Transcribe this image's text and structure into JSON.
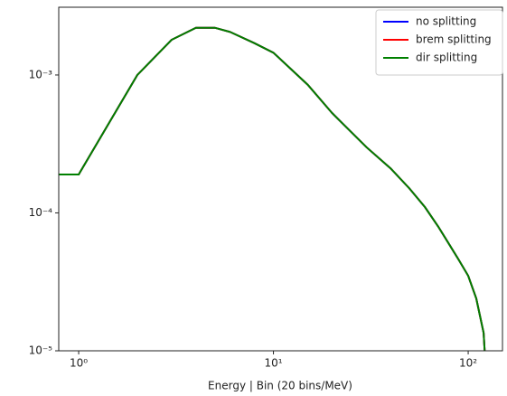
{
  "chart_data": {
    "type": "line",
    "xlabel": "Energy |  Bin (20 bins/MeV)",
    "xscale": "log",
    "yscale": "log",
    "xlim": [
      0.79,
      150
    ],
    "ylim": [
      1e-05,
      0.0031
    ],
    "xticks": [
      {
        "value": 1,
        "label": "10⁰"
      },
      {
        "value": 10,
        "label": "10¹"
      },
      {
        "value": 100,
        "label": "10²"
      }
    ],
    "yticks": [
      {
        "value": 1e-05,
        "label": "10⁻⁵"
      },
      {
        "value": 0.0001,
        "label": "10⁻⁴"
      },
      {
        "value": 0.001,
        "label": "10⁻³"
      }
    ],
    "legend": "upper right",
    "x": [
      0.79,
      1,
      2,
      3,
      4,
      5,
      6,
      8,
      10,
      15,
      20,
      30,
      40,
      50,
      60,
      70,
      80,
      90,
      100,
      110,
      120,
      125
    ],
    "series": [
      {
        "name": "no splitting",
        "color": "#0000ff",
        "values": [
          0.00019,
          0.00019,
          0.001,
          0.0018,
          0.0022,
          0.0022,
          0.00205,
          0.0017,
          0.00145,
          0.00085,
          0.00053,
          0.0003,
          0.00021,
          0.00015,
          0.00011,
          8e-05,
          5.9e-05,
          4.5e-05,
          3.5e-05,
          2.4e-05,
          1.35e-05,
          5e-06
        ]
      },
      {
        "name": "brem splitting",
        "color": "#ff0000",
        "values": [
          0.00019,
          0.00019,
          0.001,
          0.0018,
          0.0022,
          0.0022,
          0.00205,
          0.0017,
          0.00145,
          0.00085,
          0.00053,
          0.0003,
          0.00021,
          0.00015,
          0.00011,
          8e-05,
          5.9e-05,
          4.5e-05,
          3.5e-05,
          2.4e-05,
          1.35e-05,
          5e-06
        ]
      },
      {
        "name": "dir splitting",
        "color": "#008000",
        "values": [
          0.00019,
          0.00019,
          0.001,
          0.0018,
          0.0022,
          0.0022,
          0.00205,
          0.0017,
          0.00145,
          0.00085,
          0.00053,
          0.0003,
          0.00021,
          0.00015,
          0.00011,
          8e-05,
          5.9e-05,
          4.5e-05,
          3.5e-05,
          2.4e-05,
          1.35e-05,
          5e-06
        ]
      }
    ]
  }
}
